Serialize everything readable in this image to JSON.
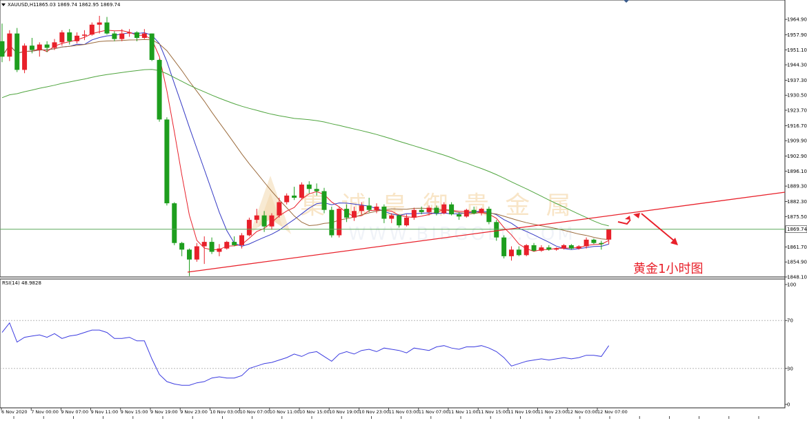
{
  "chart_data": [
    {
      "type": "candlestick",
      "symbol_label": "XAUUSD,H1",
      "ohlc_label": "1865.03 1869.74 1862.95 1869.74",
      "current_price": 1869.74,
      "current_price_label": "1869.74",
      "ylim": [
        1848.1,
        1971.5
      ],
      "y_ticks": [
        "1964.90",
        "1957.90",
        "1951.10",
        "1944.30",
        "1937.30",
        "1930.50",
        "1923.70",
        "1916.70",
        "1909.90",
        "1902.90",
        "1896.10",
        "1889.30",
        "1882.30",
        "1875.50",
        "1861.70",
        "1854.90",
        "1848.10"
      ],
      "x_ticks": [
        "6 Nov 2020",
        "7 Nov 00:00",
        "9 Nov 07:00",
        "9 Nov 11:00",
        "9 Nov 15:00",
        "9 Nov 19:00",
        "9 Nov 23:00",
        "10 Nov 03:00",
        "10 Nov 07:00",
        "10 Nov 11:00",
        "10 Nov 15:00",
        "10 Nov 19:00",
        "10 Nov 23:00",
        "11 Nov 03:00",
        "11 Nov 07:00",
        "11 Nov 11:00",
        "11 Nov 15:00",
        "11 Nov 19:00",
        "11 Nov 23:00",
        "12 Nov 03:00",
        "12 Nov 07:00"
      ],
      "annotation_text": "黄金1小时图",
      "watermark_text": "集 诚 皇 御 贵 金 属",
      "watermark_url": "WWW.BIBGOLD.COM",
      "colors": {
        "up": "#e8202a",
        "down": "#1e9e1e",
        "ma_fast": "#e8202a",
        "ma_mid": "#3338c4",
        "ma_slow": "#9b6b3c",
        "ma_long": "#4ea43d",
        "trend": "#e8202a",
        "rsi": "#3a3ae0"
      },
      "ohlc": [
        [
          1955.0,
          1963.0,
          1945.5,
          1948.0
        ],
        [
          1948.0,
          1960.0,
          1946.0,
          1958.5
        ],
        [
          1958.5,
          1961.0,
          1941.0,
          1942.0
        ],
        [
          1942.0,
          1954.0,
          1940.5,
          1953.0
        ],
        [
          1953.0,
          1956.5,
          1949.5,
          1951.0
        ],
        [
          1951.0,
          1954.5,
          1948.0,
          1953.5
        ],
        [
          1953.5,
          1955.0,
          1950.0,
          1952.0
        ],
        [
          1952.0,
          1956.0,
          1951.0,
          1954.5
        ],
        [
          1954.5,
          1960.0,
          1953.0,
          1959.0
        ],
        [
          1959.0,
          1960.5,
          1953.5,
          1955.0
        ],
        [
          1955.0,
          1959.0,
          1954.0,
          1957.5
        ],
        [
          1957.5,
          1960.0,
          1955.5,
          1958.0
        ],
        [
          1958.0,
          1963.5,
          1957.5,
          1962.5
        ],
        [
          1962.5,
          1966.5,
          1958.5,
          1963.5
        ],
        [
          1963.5,
          1966.0,
          1958.0,
          1958.5
        ],
        [
          1958.5,
          1959.5,
          1955.0,
          1956.0
        ],
        [
          1956.0,
          1960.5,
          1955.0,
          1958.5
        ],
        [
          1958.5,
          1960.5,
          1957.0,
          1959.0
        ],
        [
          1959.0,
          1959.5,
          1955.0,
          1956.5
        ],
        [
          1956.5,
          1960.5,
          1956.0,
          1958.5
        ],
        [
          1958.5,
          1958.5,
          1946.0,
          1946.5
        ],
        [
          1946.5,
          1947.0,
          1918.5,
          1919.5
        ],
        [
          1919.5,
          1920.5,
          1880.5,
          1881.5
        ],
        [
          1881.5,
          1882.0,
          1862.5,
          1863.5
        ],
        [
          1863.5,
          1864.0,
          1857.5,
          1860.5
        ],
        [
          1860.5,
          1861.0,
          1848.5,
          1856.0
        ],
        [
          1856.0,
          1863.5,
          1855.0,
          1862.0
        ],
        [
          1862.0,
          1866.5,
          1854.0,
          1864.0
        ],
        [
          1864.0,
          1866.0,
          1858.5,
          1859.5
        ],
        [
          1859.5,
          1863.0,
          1857.5,
          1861.0
        ],
        [
          1861.0,
          1864.5,
          1860.5,
          1864.0
        ],
        [
          1864.0,
          1866.5,
          1862.0,
          1862.5
        ],
        [
          1862.5,
          1868.0,
          1861.0,
          1867.0
        ],
        [
          1867.0,
          1875.0,
          1866.5,
          1874.0
        ],
        [
          1874.0,
          1879.0,
          1872.5,
          1876.0
        ],
        [
          1876.0,
          1878.0,
          1868.5,
          1871.0
        ],
        [
          1871.0,
          1877.0,
          1869.5,
          1876.0
        ],
        [
          1876.0,
          1884.0,
          1875.0,
          1882.0
        ],
        [
          1882.0,
          1886.0,
          1881.0,
          1885.0
        ],
        [
          1885.0,
          1889.0,
          1883.0,
          1884.0
        ],
        [
          1884.0,
          1891.0,
          1883.5,
          1890.0
        ],
        [
          1890.0,
          1891.5,
          1886.0,
          1888.0
        ],
        [
          1888.0,
          1890.5,
          1885.0,
          1887.0
        ],
        [
          1887.0,
          1888.5,
          1877.0,
          1878.5
        ],
        [
          1878.5,
          1880.0,
          1866.0,
          1867.0
        ],
        [
          1867.0,
          1880.0,
          1866.0,
          1879.0
        ],
        [
          1879.0,
          1881.0,
          1873.0,
          1875.0
        ],
        [
          1875.0,
          1880.0,
          1873.5,
          1878.0
        ],
        [
          1878.0,
          1882.0,
          1876.5,
          1880.5
        ],
        [
          1880.5,
          1884.0,
          1877.5,
          1878.5
        ],
        [
          1878.5,
          1881.5,
          1877.0,
          1880.0
        ],
        [
          1880.0,
          1881.0,
          1872.5,
          1874.5
        ],
        [
          1874.5,
          1877.0,
          1872.5,
          1876.0
        ],
        [
          1876.0,
          1876.5,
          1870.5,
          1871.5
        ],
        [
          1871.5,
          1876.5,
          1871.0,
          1875.0
        ],
        [
          1875.0,
          1879.5,
          1874.0,
          1878.5
        ],
        [
          1878.5,
          1880.0,
          1876.5,
          1877.5
        ],
        [
          1877.5,
          1880.5,
          1876.0,
          1879.5
        ],
        [
          1879.5,
          1880.5,
          1876.0,
          1877.0
        ],
        [
          1877.0,
          1882.0,
          1876.5,
          1881.0
        ],
        [
          1881.0,
          1882.0,
          1876.0,
          1876.5
        ],
        [
          1876.5,
          1877.5,
          1874.0,
          1875.5
        ],
        [
          1875.5,
          1879.0,
          1875.0,
          1878.5
        ],
        [
          1878.5,
          1880.0,
          1876.5,
          1877.0
        ],
        [
          1877.0,
          1879.5,
          1876.0,
          1879.0
        ],
        [
          1879.0,
          1880.0,
          1872.0,
          1873.0
        ],
        [
          1873.0,
          1874.0,
          1864.5,
          1866.0
        ],
        [
          1866.0,
          1867.0,
          1856.5,
          1857.5
        ],
        [
          1857.5,
          1862.0,
          1855.5,
          1860.5
        ],
        [
          1860.5,
          1862.0,
          1857.5,
          1858.0
        ],
        [
          1858.0,
          1863.0,
          1857.5,
          1862.5
        ],
        [
          1862.5,
          1863.5,
          1859.5,
          1860.0
        ],
        [
          1860.0,
          1862.5,
          1859.5,
          1861.5
        ],
        [
          1861.5,
          1862.5,
          1860.0,
          1860.5
        ],
        [
          1860.5,
          1861.5,
          1860.0,
          1861.0
        ],
        [
          1861.0,
          1863.0,
          1860.5,
          1862.5
        ],
        [
          1862.5,
          1863.0,
          1860.5,
          1861.0
        ],
        [
          1861.0,
          1862.5,
          1860.5,
          1862.0
        ],
        [
          1862.0,
          1866.0,
          1861.0,
          1865.0
        ],
        [
          1865.0,
          1865.5,
          1863.0,
          1863.5
        ],
        [
          1863.5,
          1864.5,
          1860.5,
          1863.0
        ],
        [
          1865.03,
          1869.74,
          1862.95,
          1869.74
        ]
      ],
      "rsi": {
        "label": "RSI(14) 48.9828",
        "ylim": [
          0,
          100
        ],
        "levels": [
          30,
          70
        ],
        "tick_labels": [
          "100",
          "70",
          "30",
          "0"
        ],
        "values": [
          60,
          68,
          52,
          56,
          57,
          58,
          56,
          59,
          55,
          57,
          58,
          60,
          62,
          62,
          60,
          55,
          55,
          56,
          53,
          53,
          38,
          25,
          19,
          17,
          16,
          16,
          18,
          19,
          22,
          23,
          22,
          22,
          24,
          30,
          32,
          34,
          35,
          37,
          39,
          42,
          40,
          43,
          44,
          40,
          36,
          42,
          44,
          42,
          45,
          46,
          44,
          47,
          46,
          45,
          43,
          47,
          46,
          45,
          48,
          49,
          47,
          46,
          48,
          48,
          49,
          47,
          44,
          39,
          32,
          34,
          36,
          37,
          38,
          37,
          38,
          39,
          38,
          39,
          41,
          41,
          40,
          49
        ]
      }
    }
  ]
}
